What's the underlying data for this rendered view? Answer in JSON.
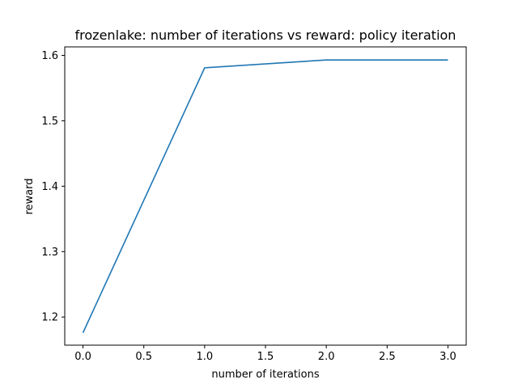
{
  "chart_data": {
    "type": "line",
    "title": "frozenlake: number of iterations vs reward: policy iteration",
    "xlabel": "number of iterations",
    "ylabel": "reward",
    "x": [
      0,
      1,
      2,
      3
    ],
    "series": [
      {
        "values": [
          1.176,
          1.581,
          1.593,
          1.593
        ],
        "color": "#1f77b4"
      }
    ],
    "xlim": [
      -0.15,
      3.15
    ],
    "ylim": [
      1.157,
      1.613
    ],
    "xticks": [
      0.0,
      0.5,
      1.0,
      1.5,
      2.0,
      2.5,
      3.0
    ],
    "xtick_labels": [
      "0.0",
      "0.5",
      "1.0",
      "1.5",
      "2.0",
      "2.5",
      "3.0"
    ],
    "yticks": [
      1.2,
      1.3,
      1.4,
      1.5,
      1.6
    ],
    "ytick_labels": [
      "1.2",
      "1.3",
      "1.4",
      "1.5",
      "1.6"
    ],
    "grid": false,
    "legend": false
  }
}
